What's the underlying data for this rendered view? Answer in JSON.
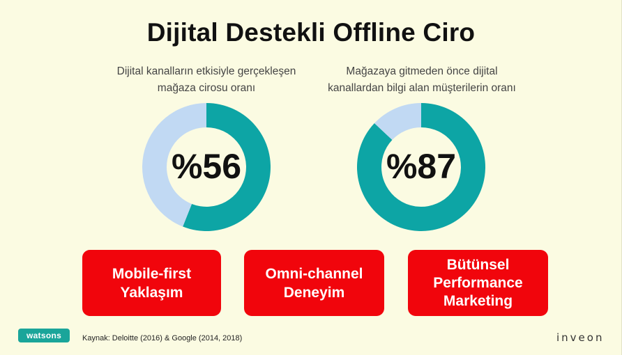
{
  "title": "Dijital Destekli Offline Ciro",
  "chart_data": [
    {
      "type": "pie",
      "subtitle": [
        "Dijital kanalların etkisiyle gerçekleşen",
        "mağaza cirosu oranı"
      ],
      "label": "%56",
      "values": [
        56,
        44
      ],
      "colors": [
        "#0da5a5",
        "#c1d9f3"
      ]
    },
    {
      "type": "pie",
      "subtitle": [
        "Mağazaya gitmeden önce dijital",
        "kanallardan bilgi alan müşterilerin oranı"
      ],
      "label": "%87",
      "values": [
        87,
        13
      ],
      "colors": [
        "#0da5a5",
        "#c1d9f3"
      ]
    }
  ],
  "boxes": [
    {
      "lines": [
        "Mobile-first",
        "Yaklaşım"
      ]
    },
    {
      "lines": [
        "Omni-channel",
        "Deneyim"
      ]
    },
    {
      "lines": [
        "Bütünsel",
        "Performance",
        "Marketing"
      ]
    }
  ],
  "footer": {
    "left_logo": "watsons",
    "source": "Kaynak: Deloitte (2016) & Google (2014, 2018)",
    "right_logo": "inveon"
  },
  "colors": {
    "background": "#fbfbe2",
    "accent_red": "#f1050c",
    "teal": "#0da5a5",
    "light_blue": "#c1d9f3"
  }
}
